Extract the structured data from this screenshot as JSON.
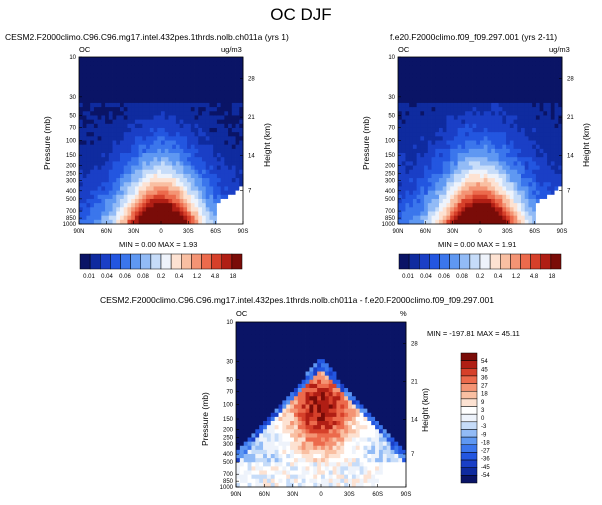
{
  "page": {
    "title": "OC DJF"
  },
  "colors": {
    "top_palette": [
      "#0a1466",
      "#0f2b9f",
      "#1a3fc6",
      "#2356e0",
      "#3b76ec",
      "#5f98f2",
      "#92bbf6",
      "#c6dcf9",
      "#eef3fb",
      "#fde2d2",
      "#f9bfa2",
      "#f49474",
      "#ec6a4c",
      "#d6402a",
      "#b01e14",
      "#7a0c08"
    ],
    "diff_palette": [
      "#0a1466",
      "#0f2b9f",
      "#1a3fc6",
      "#2356e0",
      "#3b76ec",
      "#5f98f2",
      "#92bbf6",
      "#c6dcf9",
      "#eef3fb",
      "#ffffff",
      "#fde2d2",
      "#f9bfa2",
      "#f49474",
      "#ec6a4c",
      "#d6402a",
      "#b01e14",
      "#7a0c08"
    ]
  },
  "panels": [
    {
      "title": "CESM2.F2000climo.C96.C96.mg17.intel.432pes.1thrds.nolb.ch011a (yrs 1)",
      "left_label": "OC",
      "right_label": "ug/m3",
      "stats": "MIN =  0.00  MAX =  1.93"
    },
    {
      "title": "f.e20.F2000climo.f09_f09.297.001 (yrs 2-11)",
      "left_label": "OC",
      "right_label": "ug/m3",
      "stats": "MIN =  0.00  MAX =  1.91"
    },
    {
      "title": "CESM2.F2000climo.C96.C96.mg17.intel.432pes.1thrds.nolb.ch011a - f.e20.F2000climo.f09_f09.297.001",
      "left_label": "OC",
      "right_label": "%",
      "stats": "MIN = -197.81  MAX =  45.11"
    }
  ],
  "chart_data": [
    {
      "type": "heatmap",
      "title": "CESM2.F2000climo.C96.C96.mg17.intel.432pes.1thrds.nolb.ch011a (yrs 1)",
      "xlabel": "",
      "ylabel": "Pressure (mb)",
      "y2label": "Height (km)",
      "x_ticks": [
        "90N",
        "60N",
        "30N",
        "0",
        "30S",
        "60S",
        "90S"
      ],
      "y_ticks": [
        "10",
        "30",
        "50",
        "70",
        "100",
        "150",
        "200",
        "250",
        "300",
        "400",
        "500",
        "700",
        "850",
        "1000"
      ],
      "y2_ticks": [
        "28",
        "21",
        "14",
        "7"
      ],
      "y_scale": "log",
      "ylim": [
        1000,
        10
      ],
      "units": "ug/m3",
      "colorbar_levels": [
        "0.01",
        "0.04",
        "0.06",
        "0.08",
        "0.2",
        "0.4",
        "1.2",
        "4.8",
        "18"
      ],
      "min": 0.0,
      "max": 1.93
    },
    {
      "type": "heatmap",
      "title": "f.e20.F2000climo.f09_f09.297.001 (yrs 2-11)",
      "xlabel": "",
      "ylabel": "Pressure (mb)",
      "y2label": "Height (km)",
      "x_ticks": [
        "90N",
        "60N",
        "30N",
        "0",
        "30S",
        "60S",
        "90S"
      ],
      "y_ticks": [
        "10",
        "30",
        "50",
        "70",
        "100",
        "150",
        "200",
        "250",
        "300",
        "400",
        "500",
        "700",
        "850",
        "1000"
      ],
      "y2_ticks": [
        "28",
        "21",
        "14",
        "7"
      ],
      "y_scale": "log",
      "ylim": [
        1000,
        10
      ],
      "units": "ug/m3",
      "colorbar_levels": [
        "0.01",
        "0.04",
        "0.06",
        "0.08",
        "0.2",
        "0.4",
        "1.2",
        "4.8",
        "18"
      ],
      "min": 0.0,
      "max": 1.91
    },
    {
      "type": "heatmap",
      "title": "CESM2.F2000climo.C96.C96.mg17.intel.432pes.1thrds.nolb.ch011a - f.e20.F2000climo.f09_f09.297.001",
      "xlabel": "",
      "ylabel": "Pressure (mb)",
      "y2label": "Height (km)",
      "x_ticks": [
        "90N",
        "60N",
        "30N",
        "0",
        "30S",
        "60S",
        "90S"
      ],
      "y_ticks": [
        "10",
        "30",
        "50",
        "70",
        "100",
        "150",
        "200",
        "250",
        "300",
        "400",
        "500",
        "700",
        "850",
        "1000"
      ],
      "y2_ticks": [
        "28",
        "21",
        "14",
        "7"
      ],
      "y_scale": "log",
      "ylim": [
        1000,
        10
      ],
      "units": "%",
      "colorbar_levels": [
        "54",
        "45",
        "36",
        "27",
        "18",
        "9",
        "3",
        "0",
        "-3",
        "-9",
        "-18",
        "-27",
        "-36",
        "-45",
        "-54"
      ],
      "min": -197.81,
      "max": 45.11
    }
  ]
}
